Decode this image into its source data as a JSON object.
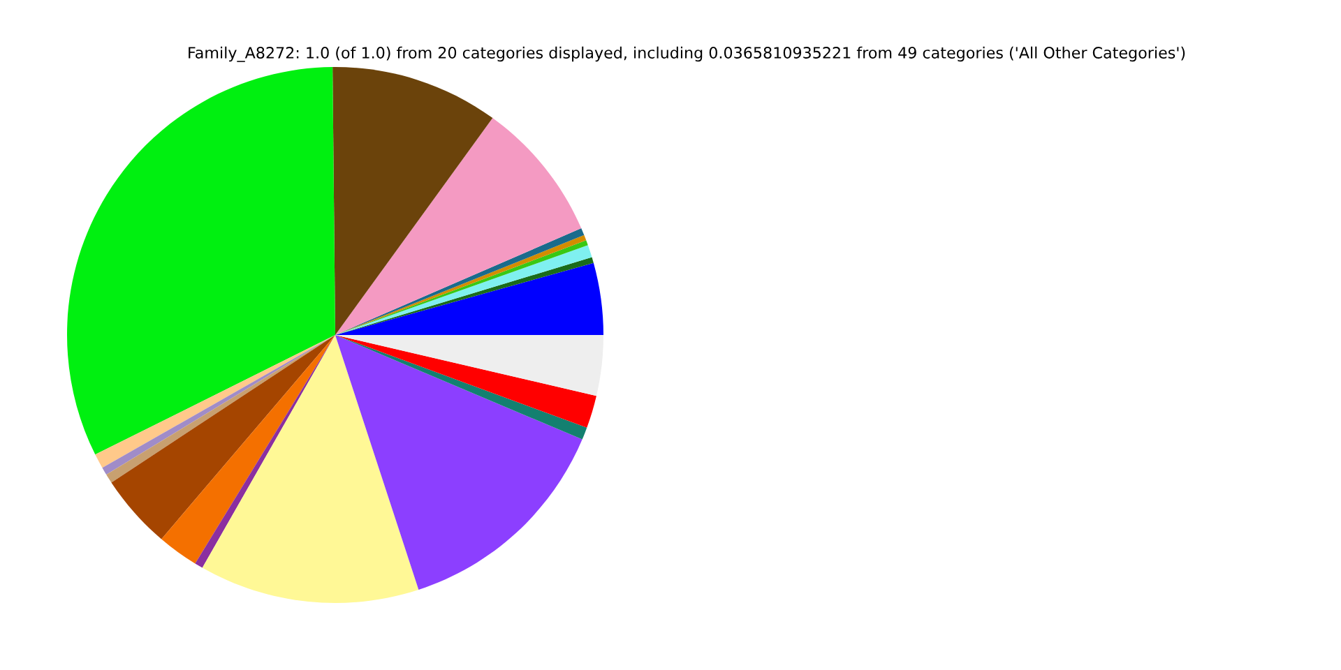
{
  "chart_data": {
    "type": "pie",
    "title": "Family_A8272: 1.0 (of 1.0) from 20 categories displayed, including 0.0365810935221 from 49 categories ('All Other Categories')",
    "categories": [
      null,
      null,
      null,
      null,
      null,
      null,
      null,
      null,
      null,
      null,
      null,
      null,
      null,
      null,
      null,
      null,
      null,
      null,
      null,
      null
    ],
    "values": [
      4.33,
      0.36,
      0.75,
      0.31,
      0.33,
      0.44,
      8.5,
      10.14,
      32.2,
      0.89,
      0.47,
      0.56,
      4.5,
      2.47,
      0.5,
      13.28,
      13.6,
      0.75,
      1.97,
      3.65
    ],
    "colors": [
      "#0000ff",
      "#1a6b1a",
      "#7ff0f0",
      "#39c814",
      "#d48c00",
      "#1a6b8c",
      "#f49ac2",
      "#6b430b",
      "#00f010",
      "#ffc98a",
      "#a08cc8",
      "#c8a070",
      "#a54500",
      "#f47000",
      "#8b2fa0",
      "#fff896",
      "#8c3fff",
      "#138070",
      "#ff0000",
      "#eeeeee"
    ]
  }
}
